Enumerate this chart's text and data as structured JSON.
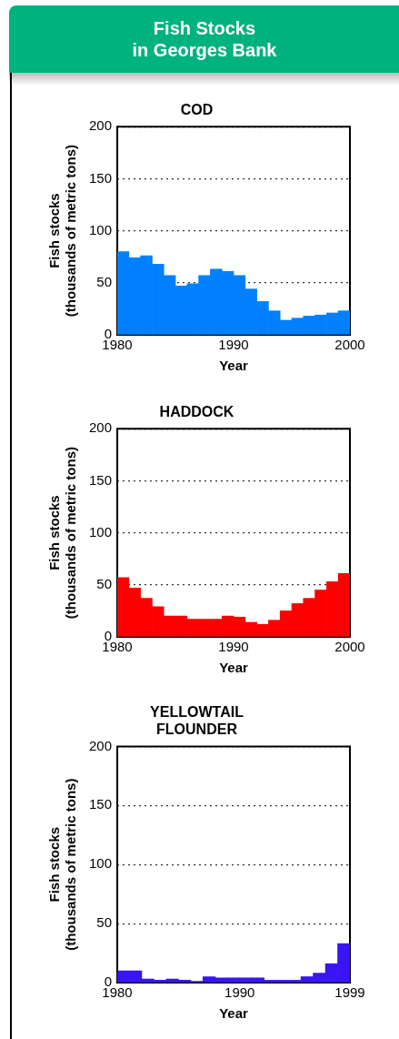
{
  "chart_data": [
    {
      "type": "other",
      "title": "Fish Stocks\nin Georges Bank"
    },
    {
      "type": "histogram",
      "title": "COD",
      "xlabel": "Year",
      "ylabel": "Fish stocks\n(thousands of metric tons)",
      "color": "#0080ff",
      "bins": [
        1980,
        1981,
        1982,
        1983,
        1984,
        1985,
        1986,
        1987,
        1988,
        1989,
        1990,
        1991,
        1992,
        1993,
        1994,
        1995,
        1996,
        1997,
        1998,
        1999,
        2000
      ],
      "values": [
        80,
        74,
        76,
        68,
        57,
        47,
        49,
        57,
        63,
        61,
        57,
        44,
        32,
        23,
        14,
        16,
        18,
        19,
        21,
        23
      ],
      "xlim": [
        1980,
        2000
      ],
      "xticks": [
        1980,
        1990,
        2000
      ],
      "ylim": [
        0,
        200
      ],
      "yticks": [
        0,
        50,
        100,
        150,
        200
      ],
      "grid": "y"
    },
    {
      "type": "histogram",
      "title": "HADDOCK",
      "xlabel": "Year",
      "ylabel": "Fish stocks\n(thousands of metric tons)",
      "color": "#ff0000",
      "bins": [
        1980,
        1981,
        1982,
        1983,
        1984,
        1985,
        1986,
        1987,
        1988,
        1989,
        1990,
        1991,
        1992,
        1993,
        1994,
        1995,
        1996,
        1997,
        1998,
        1999,
        2000
      ],
      "values": [
        57,
        47,
        37,
        29,
        20,
        20,
        17,
        17,
        17,
        20,
        19,
        14,
        12,
        16,
        25,
        32,
        37,
        45,
        53,
        61
      ],
      "xlim": [
        1980,
        2000
      ],
      "xticks": [
        1980,
        1990,
        2000
      ],
      "ylim": [
        0,
        200
      ],
      "yticks": [
        0,
        50,
        100,
        150,
        200
      ],
      "grid": "y"
    },
    {
      "type": "histogram",
      "title": "YELLOWTAIL\nFLOUNDER",
      "xlabel": "Year",
      "ylabel": "Fish stocks\n(thousands of metric tons)",
      "color": "#3a14f5",
      "bins": [
        1980,
        1981,
        1982,
        1983,
        1984,
        1985,
        1986,
        1987,
        1988,
        1989,
        1990,
        1991,
        1992,
        1993,
        1994,
        1995,
        1996,
        1997,
        1998,
        1999
      ],
      "values": [
        10,
        10,
        3,
        2,
        3,
        2,
        1,
        5,
        4,
        4,
        4,
        4,
        2,
        2,
        2,
        5,
        8,
        16,
        33
      ],
      "xlim": [
        1980,
        1999
      ],
      "xticks": [
        1980,
        1990,
        1999
      ],
      "ylim": [
        0,
        200
      ],
      "yticks": [
        0,
        50,
        100,
        150,
        200
      ],
      "grid": "y"
    }
  ]
}
